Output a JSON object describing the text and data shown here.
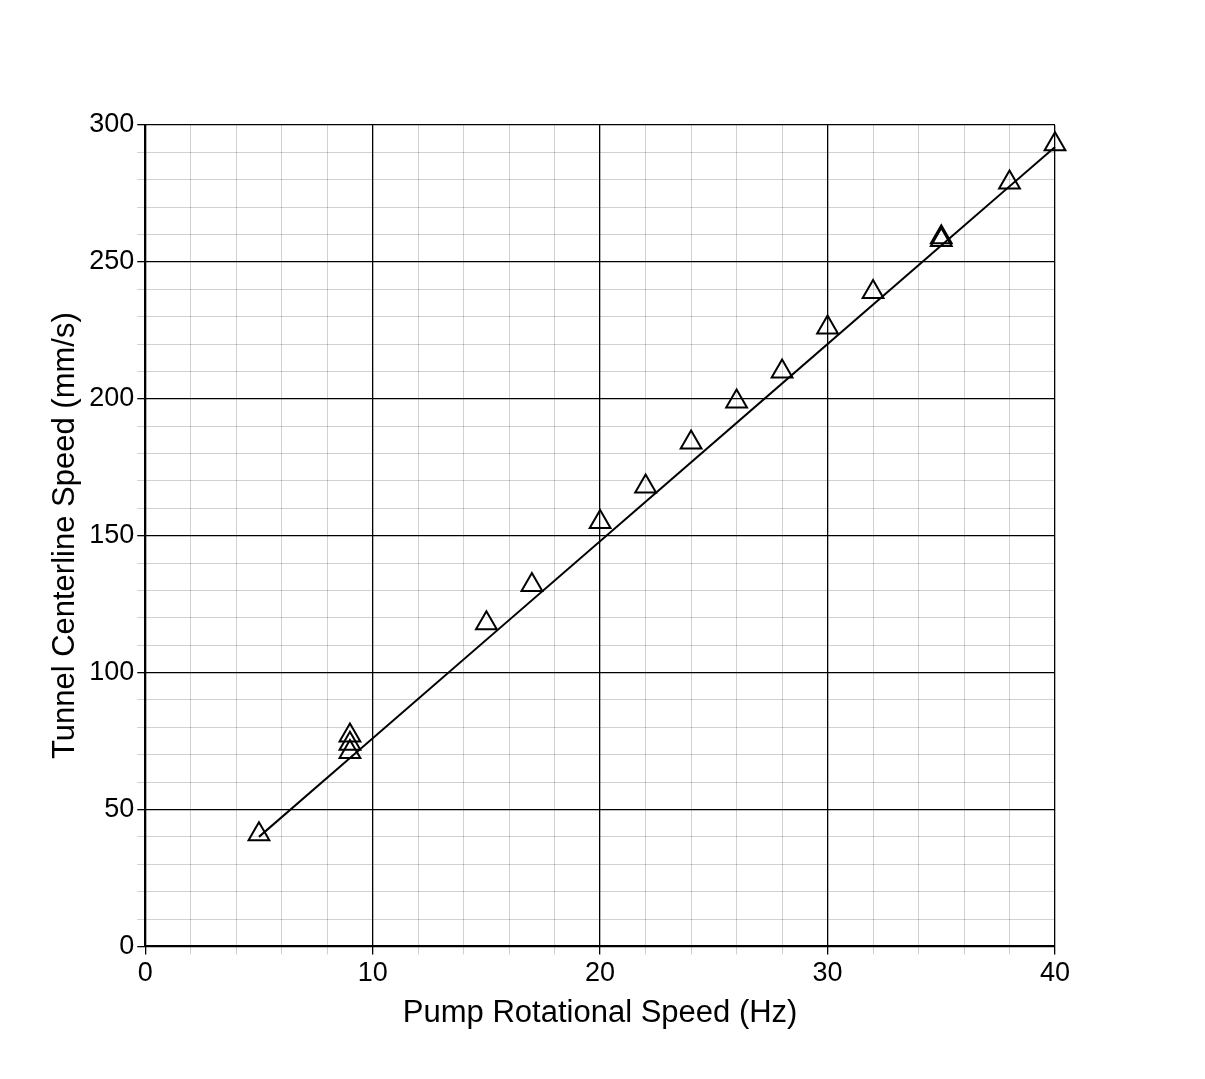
{
  "chart_data": {
    "type": "scatter",
    "xlabel": "Pump Rotational Speed (Hz)",
    "ylabel": "Tunnel Centerline Speed (mm/s)",
    "xlim": [
      0,
      40
    ],
    "ylim": [
      0,
      300
    ],
    "xticks": [
      0,
      {
        "value": 2,
        "label": null
      },
      {
        "value": 4,
        "label": null
      },
      {
        "value": 6,
        "label": null
      },
      {
        "value": 8,
        "label": null
      },
      10,
      {
        "value": 12,
        "label": null
      },
      {
        "value": 14,
        "label": null
      },
      {
        "value": 16,
        "label": null
      },
      {
        "value": 18,
        "label": null
      },
      20,
      {
        "value": 22,
        "label": null
      },
      {
        "value": 24,
        "label": null
      },
      {
        "value": 26,
        "label": null
      },
      {
        "value": 28,
        "label": null
      },
      30,
      {
        "value": 32,
        "label": null
      },
      {
        "value": 34,
        "label": null
      },
      {
        "value": 36,
        "label": null
      },
      {
        "value": 38,
        "label": null
      },
      40
    ],
    "yticks": [
      0,
      {
        "value": 10,
        "label": null
      },
      {
        "value": 20,
        "label": null
      },
      {
        "value": 30,
        "label": null
      },
      {
        "value": 40,
        "label": null
      },
      50,
      {
        "value": 60,
        "label": null
      },
      {
        "value": 70,
        "label": null
      },
      {
        "value": 80,
        "label": null
      },
      {
        "value": 90,
        "label": null
      },
      100,
      {
        "value": 110,
        "label": null
      },
      {
        "value": 120,
        "label": null
      },
      {
        "value": 130,
        "label": null
      },
      {
        "value": 140,
        "label": null
      },
      150,
      {
        "value": 160,
        "label": null
      },
      {
        "value": 170,
        "label": null
      },
      {
        "value": 180,
        "label": null
      },
      {
        "value": 190,
        "label": null
      },
      200,
      {
        "value": 210,
        "label": null
      },
      {
        "value": 220,
        "label": null
      },
      {
        "value": 230,
        "label": null
      },
      {
        "value": 240,
        "label": null
      },
      250,
      {
        "value": 260,
        "label": null
      },
      {
        "value": 270,
        "label": null
      },
      {
        "value": 280,
        "label": null
      },
      {
        "value": 290,
        "label": null
      },
      300
    ],
    "grid": true,
    "legend": false,
    "series": [
      {
        "type": "scatter",
        "color": "#000000",
        "marker": "triangle",
        "x": [
          5,
          9,
          9,
          9,
          15,
          17,
          20,
          22,
          24,
          26,
          28,
          30,
          32,
          35,
          35,
          38,
          40
        ],
        "values": [
          41,
          77,
          74,
          71,
          118,
          132,
          155,
          168,
          184,
          199,
          210,
          226,
          239,
          259,
          258,
          279,
          293
        ]
      },
      {
        "type": "line",
        "color": "#000000",
        "marker": "none",
        "line_style": "solid",
        "x": [
          5,
          40
        ],
        "values": [
          40,
          292
        ]
      }
    ]
  }
}
